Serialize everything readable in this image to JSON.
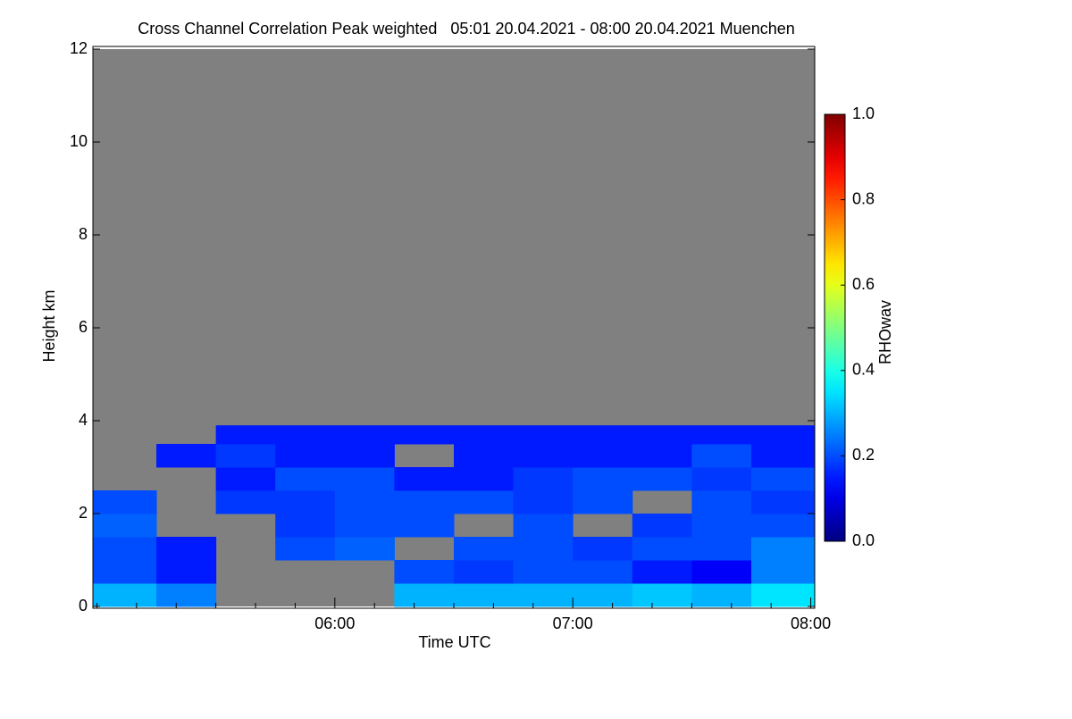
{
  "chart_data": {
    "type": "heatmap",
    "title": "Cross Channel Correlation Peak weighted   05:01 20.04.2021 - 08:00 20.04.2021 Muenchen",
    "x_label": "Time UTC",
    "y_label": "Height km",
    "colorbar_label": "RHOwav",
    "xlim": [
      299,
      481
    ],
    "xticks": [
      {
        "value": 360,
        "label": "06:00"
      },
      {
        "value": 420,
        "label": "07:00"
      },
      {
        "value": 480,
        "label": "08:00"
      }
    ],
    "xminorticks": [
      300,
      310,
      320,
      330,
      340,
      350,
      370,
      380,
      390,
      400,
      410,
      430,
      440,
      450,
      460,
      470
    ],
    "ylim": [
      0,
      12
    ],
    "yticks": [
      0,
      2,
      4,
      6,
      8,
      10,
      12
    ],
    "clim": [
      0,
      1
    ],
    "cticks": [
      {
        "value": 0,
        "label": "0.0"
      },
      {
        "value": 0.2,
        "label": "0.2"
      },
      {
        "value": 0.4,
        "label": "0.4"
      },
      {
        "value": 0.6,
        "label": "0.6"
      },
      {
        "value": 0.8,
        "label": "0.8"
      },
      {
        "value": 1,
        "label": "1.0"
      }
    ],
    "colormap": "jet",
    "missing_color": "#808080",
    "x_edges": [
      299,
      315,
      330,
      345,
      360,
      375,
      390,
      405,
      420,
      435,
      450,
      465,
      481
    ],
    "y_edges": [
      0,
      0.5,
      1,
      1.5,
      2,
      2.5,
      3,
      3.5,
      3.9
    ],
    "z": [
      [
        0.3,
        0.25,
        null,
        null,
        null,
        0.3,
        0.3,
        0.3,
        0.3,
        0.32,
        0.3,
        0.35
      ],
      [
        0.2,
        0.15,
        null,
        null,
        null,
        0.2,
        0.18,
        0.2,
        0.2,
        0.15,
        0.12,
        0.25
      ],
      [
        0.2,
        0.15,
        null,
        0.2,
        0.22,
        null,
        0.2,
        0.2,
        0.18,
        0.2,
        0.2,
        0.25
      ],
      [
        0.22,
        null,
        null,
        0.18,
        0.2,
        0.2,
        null,
        0.2,
        null,
        0.18,
        0.2,
        0.2
      ],
      [
        0.2,
        null,
        0.18,
        0.18,
        0.2,
        0.2,
        0.2,
        0.18,
        0.2,
        null,
        0.2,
        0.18
      ],
      [
        null,
        null,
        0.15,
        0.2,
        0.2,
        0.15,
        0.15,
        0.18,
        0.2,
        0.2,
        0.18,
        0.2
      ],
      [
        null,
        0.15,
        0.18,
        0.15,
        0.15,
        null,
        0.15,
        0.15,
        0.15,
        0.15,
        0.2,
        0.15
      ],
      [
        null,
        null,
        0.15,
        0.15,
        0.15,
        0.15,
        0.15,
        0.15,
        0.15,
        0.15,
        0.15,
        0.15
      ]
    ]
  }
}
